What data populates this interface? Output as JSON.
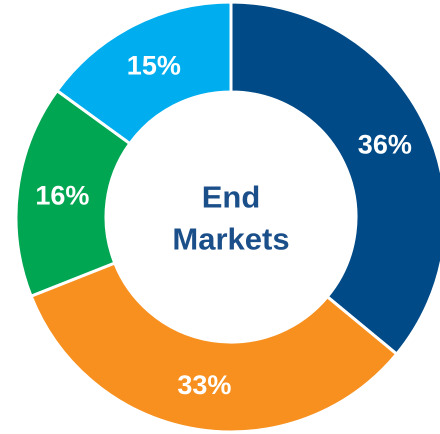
{
  "chart_data": {
    "type": "pie",
    "donut": true,
    "title": "",
    "center_label": [
      "End",
      "Markets"
    ],
    "slices": [
      {
        "label": "36%",
        "value": 36,
        "color": "#004a87"
      },
      {
        "label": "33%",
        "value": 33,
        "color": "#f7901e"
      },
      {
        "label": "16%",
        "value": 16,
        "color": "#00a651"
      },
      {
        "label": "15%",
        "value": 15,
        "color": "#00aeef"
      }
    ],
    "start_angle_deg": 0,
    "direction": "clockwise",
    "legend": "none"
  }
}
